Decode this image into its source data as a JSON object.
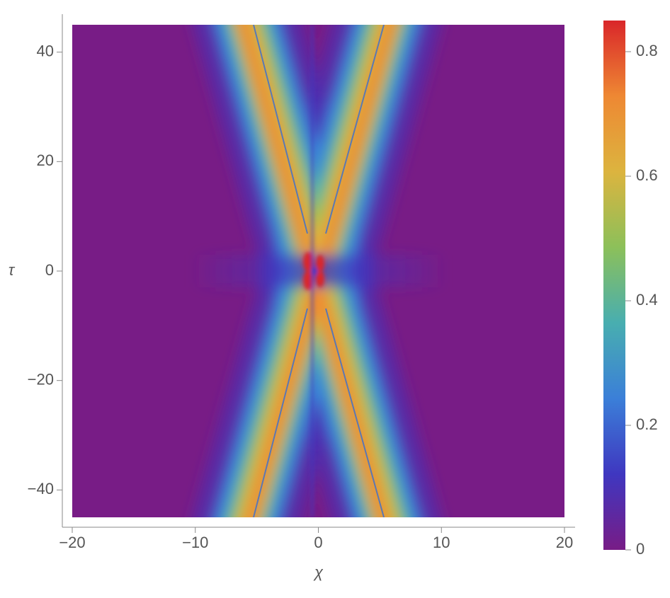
{
  "chart_data": {
    "type": "density",
    "xlabel": "χ",
    "ylabel": "τ",
    "xlim": [
      -20,
      20
    ],
    "ylim": [
      -45,
      45
    ],
    "xticks": [
      {
        "value": -20,
        "label": "−20"
      },
      {
        "value": -10,
        "label": "−10"
      },
      0,
      10,
      20
    ],
    "yticks": [
      {
        "value": -40,
        "label": "−40"
      },
      {
        "value": -20,
        "label": "−20"
      },
      0,
      20,
      40
    ],
    "clim": [
      0,
      0.85
    ],
    "cticks": [
      0,
      0.2,
      0.4,
      0.6,
      0.8
    ],
    "colormap": [
      "#781c86",
      "#3f37c0",
      "#3b7fd8",
      "#48aeb0",
      "#8cc05a",
      "#dcb43f",
      "#ee8833",
      "#d9262a"
    ]
  }
}
